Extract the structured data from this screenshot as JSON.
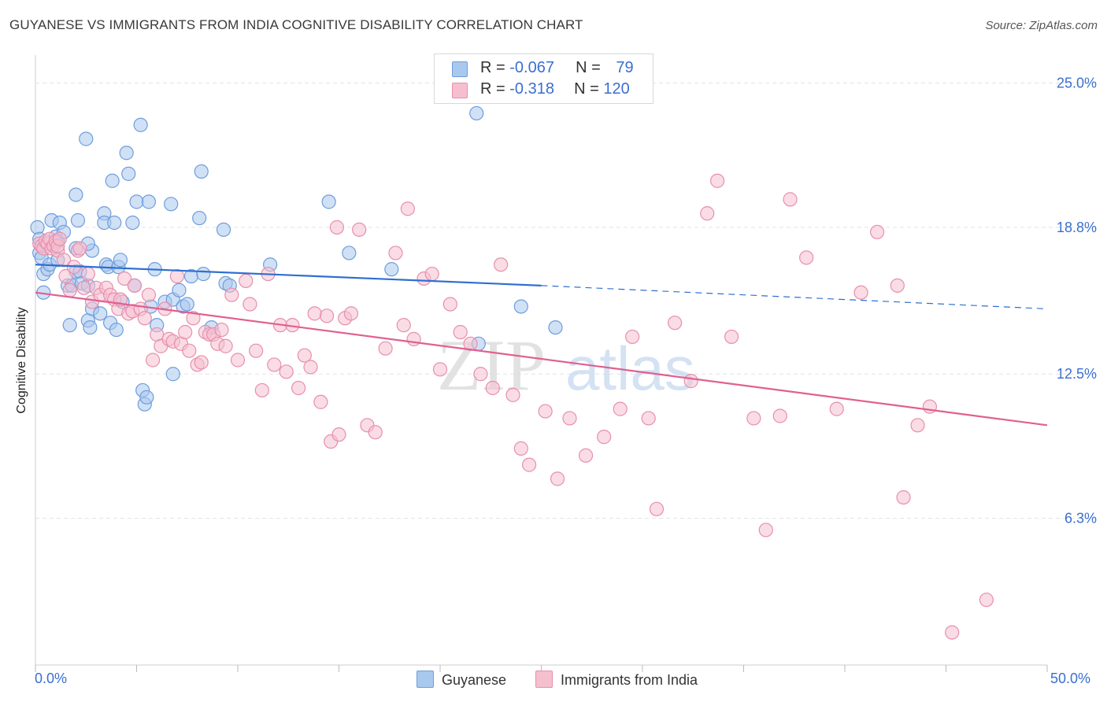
{
  "header": {
    "title": "GUYANESE VS IMMIGRANTS FROM INDIA COGNITIVE DISABILITY CORRELATION CHART",
    "source": "Source: ZipAtlas.com"
  },
  "legend": {
    "row1": {
      "r_label": "R = ",
      "r_value": "-0.067",
      "n_label": "N = ",
      "n_value": "79"
    },
    "row2": {
      "r_label": "R = ",
      "r_value": "-0.318",
      "n_label": "N = ",
      "n_value": "120"
    }
  },
  "colors": {
    "blue_fill": "#a9c8ee",
    "blue_stroke": "#6f9ddc",
    "blue_line": "#2f6fd0",
    "pink_fill": "#f6bfd0",
    "pink_stroke": "#e78fad",
    "pink_line": "#e06090",
    "tick_label": "#3a6fd0",
    "grid": "#e3e3e3"
  },
  "watermark": {
    "part1": "ZIP",
    "part2": "atlas"
  },
  "chart_data": {
    "type": "scatter",
    "title": "GUYANESE VS IMMIGRANTS FROM INDIA COGNITIVE DISABILITY CORRELATION CHART",
    "xlabel": "",
    "ylabel": "Cognitive Disability",
    "xlim": [
      0,
      50
    ],
    "ylim": [
      0,
      26.2
    ],
    "x_tick_labels": [
      "0.0%",
      "50.0%"
    ],
    "y_ticks": [
      6.3,
      12.5,
      18.8,
      25.0
    ],
    "y_tick_labels": [
      "6.3%",
      "12.5%",
      "18.8%",
      "25.0%"
    ],
    "grid": "horizontal dashed",
    "legend_position": "top-center",
    "series": [
      {
        "name": "Guyanese",
        "color": "#a9c8ee",
        "r": -0.067,
        "n": 79,
        "trend": {
          "x0": 0,
          "y0": 17.2,
          "x1": 25,
          "y1": 16.3,
          "dashed_to_x": 50,
          "dashed_y": 15.3
        },
        "points": [
          [
            0.1,
            18.8
          ],
          [
            0.2,
            18.3
          ],
          [
            0.2,
            17.7
          ],
          [
            0.3,
            17.5
          ],
          [
            0.4,
            16.8
          ],
          [
            0.4,
            16.0
          ],
          [
            0.6,
            17.0
          ],
          [
            0.7,
            17.2
          ],
          [
            0.8,
            19.1
          ],
          [
            0.9,
            18.0
          ],
          [
            1.0,
            18.4
          ],
          [
            1.1,
            18.2
          ],
          [
            1.1,
            17.4
          ],
          [
            1.2,
            19.0
          ],
          [
            1.4,
            18.6
          ],
          [
            1.6,
            16.3
          ],
          [
            1.7,
            14.6
          ],
          [
            1.8,
            16.3
          ],
          [
            2.0,
            16.9
          ],
          [
            2.0,
            17.9
          ],
          [
            2.0,
            20.2
          ],
          [
            2.1,
            19.1
          ],
          [
            2.2,
            16.9
          ],
          [
            2.3,
            16.4
          ],
          [
            2.5,
            22.6
          ],
          [
            2.6,
            14.8
          ],
          [
            2.6,
            16.3
          ],
          [
            2.7,
            14.5
          ],
          [
            2.8,
            15.3
          ],
          [
            2.8,
            17.8
          ],
          [
            2.6,
            18.1
          ],
          [
            3.2,
            15.1
          ],
          [
            3.4,
            19.4
          ],
          [
            3.4,
            19.0
          ],
          [
            3.5,
            17.2
          ],
          [
            3.6,
            17.1
          ],
          [
            3.7,
            14.7
          ],
          [
            3.8,
            20.8
          ],
          [
            3.9,
            19.0
          ],
          [
            4.0,
            14.4
          ],
          [
            4.1,
            17.1
          ],
          [
            4.2,
            17.4
          ],
          [
            4.3,
            15.6
          ],
          [
            4.5,
            22.0
          ],
          [
            4.6,
            21.1
          ],
          [
            4.8,
            19.0
          ],
          [
            4.9,
            16.3
          ],
          [
            5.0,
            19.9
          ],
          [
            5.2,
            23.2
          ],
          [
            5.3,
            11.8
          ],
          [
            5.4,
            11.2
          ],
          [
            5.5,
            11.5
          ],
          [
            5.6,
            19.9
          ],
          [
            5.7,
            15.4
          ],
          [
            5.9,
            17.0
          ],
          [
            6.0,
            14.6
          ],
          [
            6.4,
            15.6
          ],
          [
            6.7,
            19.8
          ],
          [
            6.8,
            15.7
          ],
          [
            6.8,
            12.5
          ],
          [
            7.1,
            16.1
          ],
          [
            7.3,
            15.4
          ],
          [
            7.5,
            15.5
          ],
          [
            7.7,
            16.7
          ],
          [
            8.1,
            19.2
          ],
          [
            8.2,
            21.2
          ],
          [
            8.3,
            16.8
          ],
          [
            8.7,
            14.5
          ],
          [
            9.3,
            18.7
          ],
          [
            9.4,
            16.4
          ],
          [
            9.6,
            16.3
          ],
          [
            11.6,
            17.2
          ],
          [
            14.5,
            19.9
          ],
          [
            15.5,
            17.7
          ],
          [
            17.6,
            17.0
          ],
          [
            21.8,
            23.7
          ],
          [
            21.9,
            13.8
          ],
          [
            24.0,
            15.4
          ],
          [
            25.7,
            14.5
          ]
        ]
      },
      {
        "name": "Immigrants from India",
        "color": "#f6bfd0",
        "r": -0.318,
        "n": 120,
        "trend": {
          "x0": 0,
          "y0": 16.0,
          "x1": 50,
          "y1": 10.3
        },
        "points": [
          [
            0.2,
            18.1
          ],
          [
            0.3,
            18.0
          ],
          [
            0.4,
            17.9
          ],
          [
            0.5,
            18.2
          ],
          [
            0.6,
            18.1
          ],
          [
            0.7,
            18.3
          ],
          [
            0.8,
            17.9
          ],
          [
            0.9,
            18.0
          ],
          [
            1.0,
            18.2
          ],
          [
            1.1,
            17.8
          ],
          [
            1.1,
            18.0
          ],
          [
            1.2,
            18.3
          ],
          [
            1.4,
            17.4
          ],
          [
            1.5,
            16.7
          ],
          [
            1.7,
            16.1
          ],
          [
            1.9,
            17.1
          ],
          [
            2.1,
            17.8
          ],
          [
            2.2,
            17.9
          ],
          [
            2.4,
            16.2
          ],
          [
            2.6,
            16.8
          ],
          [
            2.8,
            15.6
          ],
          [
            3.0,
            16.2
          ],
          [
            3.2,
            15.9
          ],
          [
            3.5,
            16.2
          ],
          [
            3.7,
            15.9
          ],
          [
            3.9,
            15.7
          ],
          [
            4.1,
            15.3
          ],
          [
            4.2,
            15.7
          ],
          [
            4.4,
            16.6
          ],
          [
            4.6,
            15.1
          ],
          [
            4.8,
            15.2
          ],
          [
            4.9,
            16.3
          ],
          [
            5.2,
            15.3
          ],
          [
            5.4,
            14.9
          ],
          [
            5.6,
            15.9
          ],
          [
            5.8,
            13.1
          ],
          [
            6.0,
            14.2
          ],
          [
            6.2,
            13.7
          ],
          [
            6.4,
            15.3
          ],
          [
            6.6,
            14.0
          ],
          [
            6.8,
            13.9
          ],
          [
            7.0,
            16.7
          ],
          [
            7.2,
            13.8
          ],
          [
            7.4,
            14.3
          ],
          [
            7.6,
            13.5
          ],
          [
            7.8,
            14.9
          ],
          [
            8.0,
            12.9
          ],
          [
            8.2,
            13.0
          ],
          [
            8.4,
            14.3
          ],
          [
            8.6,
            14.2
          ],
          [
            8.8,
            14.2
          ],
          [
            9.0,
            13.8
          ],
          [
            9.2,
            14.4
          ],
          [
            9.4,
            13.7
          ],
          [
            9.7,
            15.9
          ],
          [
            10.0,
            13.1
          ],
          [
            10.4,
            16.5
          ],
          [
            10.6,
            15.5
          ],
          [
            10.9,
            13.5
          ],
          [
            11.2,
            11.8
          ],
          [
            11.5,
            16.8
          ],
          [
            11.8,
            12.9
          ],
          [
            12.1,
            14.6
          ],
          [
            12.4,
            12.6
          ],
          [
            12.7,
            14.6
          ],
          [
            13.0,
            11.9
          ],
          [
            13.3,
            13.3
          ],
          [
            13.6,
            12.8
          ],
          [
            13.8,
            15.1
          ],
          [
            14.1,
            11.3
          ],
          [
            14.4,
            15.0
          ],
          [
            14.6,
            9.6
          ],
          [
            15.0,
            9.9
          ],
          [
            15.3,
            14.9
          ],
          [
            15.6,
            15.1
          ],
          [
            16.0,
            18.7
          ],
          [
            16.4,
            10.3
          ],
          [
            16.8,
            10.0
          ],
          [
            17.3,
            13.6
          ],
          [
            17.8,
            17.7
          ],
          [
            18.2,
            14.6
          ],
          [
            18.7,
            14.0
          ],
          [
            19.2,
            16.6
          ],
          [
            19.6,
            16.8
          ],
          [
            20.0,
            12.7
          ],
          [
            20.5,
            15.5
          ],
          [
            21.0,
            14.3
          ],
          [
            21.5,
            13.8
          ],
          [
            22.0,
            12.5
          ],
          [
            22.6,
            11.9
          ],
          [
            23.0,
            17.2
          ],
          [
            23.6,
            11.6
          ],
          [
            24.0,
            9.3
          ],
          [
            24.4,
            8.6
          ],
          [
            25.2,
            10.9
          ],
          [
            25.8,
            8.0
          ],
          [
            26.4,
            10.6
          ],
          [
            27.2,
            9.0
          ],
          [
            28.1,
            9.8
          ],
          [
            28.9,
            11.0
          ],
          [
            29.5,
            14.1
          ],
          [
            30.3,
            10.6
          ],
          [
            30.7,
            6.7
          ],
          [
            31.6,
            14.7
          ],
          [
            32.4,
            12.2
          ],
          [
            33.2,
            19.4
          ],
          [
            33.7,
            20.8
          ],
          [
            34.4,
            14.1
          ],
          [
            35.5,
            10.6
          ],
          [
            36.1,
            5.8
          ],
          [
            36.8,
            10.7
          ],
          [
            37.3,
            20.0
          ],
          [
            38.1,
            17.5
          ],
          [
            39.6,
            11.0
          ],
          [
            40.8,
            16.0
          ],
          [
            41.6,
            18.6
          ],
          [
            42.6,
            16.3
          ],
          [
            42.9,
            7.2
          ],
          [
            43.6,
            10.3
          ],
          [
            44.2,
            11.1
          ],
          [
            45.3,
            1.4
          ],
          [
            47.0,
            2.8
          ],
          [
            18.4,
            19.6
          ],
          [
            14.9,
            18.8
          ]
        ]
      }
    ]
  },
  "bottom_legend": {
    "series1": "Guyanese",
    "series2": "Immigrants from India"
  }
}
